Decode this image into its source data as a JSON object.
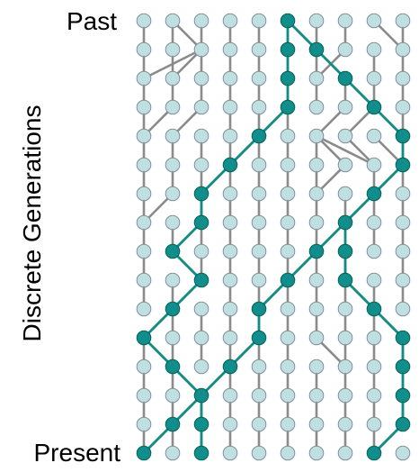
{
  "labels": {
    "top": "Past",
    "bottom": "Present",
    "axis": "Discrete Generations"
  },
  "colors": {
    "background": "#ffffff",
    "node_light": "#bfe0e3",
    "node_dark": "#108e89",
    "edge_gray": "#8a8a8a",
    "edge_teal": "#0f8b86",
    "node_stroke": "#7f8f93",
    "text": "#000000"
  },
  "grid": {
    "columns": 10,
    "rows": 16,
    "row_order": "top_to_bottom_past_to_present"
  },
  "genealogy": {
    "gray_edges": [
      [
        0,
        0,
        0,
        1
      ],
      [
        1,
        0,
        1,
        1
      ],
      [
        1,
        0,
        2,
        1
      ],
      [
        2,
        0,
        2,
        1
      ],
      [
        3,
        0,
        3,
        1
      ],
      [
        4,
        0,
        4,
        1
      ],
      [
        6,
        0,
        6,
        1
      ],
      [
        7,
        0,
        7,
        1
      ],
      [
        8,
        0,
        9,
        1
      ],
      [
        9,
        0,
        9,
        1
      ],
      [
        0,
        1,
        0,
        2
      ],
      [
        1,
        1,
        1,
        2
      ],
      [
        2,
        1,
        0,
        2
      ],
      [
        2,
        1,
        1,
        2
      ],
      [
        2,
        1,
        2,
        2
      ],
      [
        3,
        1,
        3,
        2
      ],
      [
        4,
        1,
        4,
        2
      ],
      [
        6,
        1,
        6,
        2
      ],
      [
        7,
        1,
        6,
        2
      ],
      [
        8,
        1,
        8,
        2
      ],
      [
        9,
        1,
        9,
        2
      ],
      [
        0,
        2,
        0,
        3
      ],
      [
        1,
        2,
        1,
        3
      ],
      [
        2,
        2,
        2,
        3
      ],
      [
        3,
        2,
        3,
        3
      ],
      [
        4,
        2,
        4,
        3
      ],
      [
        6,
        2,
        6,
        3
      ],
      [
        7,
        2,
        7,
        3
      ],
      [
        8,
        2,
        8,
        3
      ],
      [
        9,
        2,
        9,
        3
      ],
      [
        0,
        3,
        0,
        4
      ],
      [
        1,
        3,
        0,
        4
      ],
      [
        2,
        3,
        1,
        4
      ],
      [
        3,
        3,
        3,
        4
      ],
      [
        4,
        3,
        4,
        4
      ],
      [
        5,
        3,
        5,
        4
      ],
      [
        7,
        3,
        6,
        4
      ],
      [
        8,
        3,
        7,
        4
      ],
      [
        9,
        3,
        9,
        4
      ],
      [
        0,
        4,
        0,
        5
      ],
      [
        1,
        4,
        1,
        5
      ],
      [
        2,
        4,
        2,
        5
      ],
      [
        3,
        4,
        3,
        5
      ],
      [
        4,
        4,
        4,
        5
      ],
      [
        5,
        4,
        5,
        5
      ],
      [
        6,
        4,
        6,
        5
      ],
      [
        6,
        4,
        7,
        5
      ],
      [
        6,
        4,
        8,
        5
      ],
      [
        7,
        4,
        8,
        5
      ],
      [
        8,
        4,
        9,
        5
      ],
      [
        0,
        5,
        0,
        6
      ],
      [
        1,
        5,
        1,
        6
      ],
      [
        2,
        5,
        2,
        6
      ],
      [
        3,
        5,
        3,
        6
      ],
      [
        4,
        5,
        4,
        6
      ],
      [
        5,
        5,
        5,
        6
      ],
      [
        6,
        5,
        6,
        6
      ],
      [
        7,
        5,
        6,
        6
      ],
      [
        8,
        5,
        8,
        6
      ],
      [
        9,
        5,
        9,
        6
      ],
      [
        0,
        6,
        0,
        7
      ],
      [
        1,
        6,
        0,
        7
      ],
      [
        2,
        6,
        2,
        7
      ],
      [
        3,
        6,
        3,
        7
      ],
      [
        4,
        6,
        4,
        7
      ],
      [
        5,
        6,
        5,
        7
      ],
      [
        6,
        6,
        6,
        7
      ],
      [
        7,
        6,
        7,
        7
      ],
      [
        8,
        6,
        8,
        7
      ],
      [
        9,
        6,
        9,
        7
      ],
      [
        0,
        7,
        0,
        8
      ],
      [
        1,
        7,
        1,
        8
      ],
      [
        2,
        7,
        2,
        8
      ],
      [
        3,
        7,
        3,
        8
      ],
      [
        4,
        7,
        4,
        8
      ],
      [
        5,
        7,
        5,
        8
      ],
      [
        6,
        7,
        6,
        8
      ],
      [
        8,
        7,
        8,
        8
      ],
      [
        9,
        7,
        9,
        8
      ],
      [
        0,
        8,
        0,
        9
      ],
      [
        2,
        8,
        2,
        9
      ],
      [
        3,
        8,
        3,
        9
      ],
      [
        4,
        8,
        4,
        9
      ],
      [
        5,
        8,
        5,
        9
      ],
      [
        6,
        8,
        6,
        9
      ],
      [
        7,
        8,
        7,
        9
      ],
      [
        9,
        8,
        9,
        9
      ],
      [
        0,
        9,
        0,
        10
      ],
      [
        1,
        9,
        1,
        10
      ],
      [
        3,
        9,
        3,
        10
      ],
      [
        4,
        9,
        4,
        10
      ],
      [
        5,
        9,
        5,
        10
      ],
      [
        6,
        9,
        6,
        10
      ],
      [
        7,
        9,
        7,
        10
      ],
      [
        8,
        9,
        8,
        10
      ],
      [
        9,
        9,
        9,
        10
      ],
      [
        1,
        10,
        1,
        11
      ],
      [
        2,
        10,
        2,
        11
      ],
      [
        3,
        10,
        3,
        11
      ],
      [
        5,
        10,
        5,
        11
      ],
      [
        6,
        10,
        6,
        11
      ],
      [
        7,
        10,
        7,
        11
      ],
      [
        8,
        10,
        8,
        11
      ],
      [
        0,
        11,
        0,
        12
      ],
      [
        1,
        11,
        1,
        12
      ],
      [
        2,
        11,
        2,
        12
      ],
      [
        3,
        11,
        3,
        12
      ],
      [
        4,
        11,
        4,
        12
      ],
      [
        5,
        11,
        5,
        12
      ],
      [
        6,
        11,
        7,
        12
      ],
      [
        7,
        11,
        7,
        12
      ],
      [
        8,
        11,
        8,
        12
      ],
      [
        9,
        11,
        9,
        12
      ],
      [
        0,
        12,
        0,
        13
      ],
      [
        1,
        12,
        1,
        13
      ],
      [
        3,
        12,
        3,
        13
      ],
      [
        4,
        12,
        4,
        13
      ],
      [
        5,
        12,
        5,
        13
      ],
      [
        6,
        12,
        6,
        13
      ],
      [
        7,
        12,
        7,
        13
      ],
      [
        8,
        12,
        8,
        13
      ],
      [
        0,
        13,
        0,
        14
      ],
      [
        1,
        13,
        1,
        14
      ],
      [
        2,
        13,
        2,
        14
      ],
      [
        3,
        13,
        3,
        14
      ],
      [
        4,
        13,
        4,
        14
      ],
      [
        5,
        13,
        5,
        14
      ],
      [
        6,
        13,
        6,
        14
      ],
      [
        7,
        13,
        7,
        14
      ],
      [
        8,
        13,
        8,
        14
      ],
      [
        9,
        13,
        9,
        14
      ],
      [
        0,
        14,
        0,
        15
      ],
      [
        1,
        14,
        1,
        15
      ],
      [
        2,
        14,
        2,
        15
      ],
      [
        3,
        14,
        3,
        15
      ],
      [
        4,
        14,
        4,
        15
      ],
      [
        5,
        14,
        5,
        15
      ],
      [
        6,
        14,
        6,
        15
      ],
      [
        7,
        14,
        7,
        15
      ],
      [
        8,
        14,
        8,
        15
      ]
    ],
    "teal_edges": [
      [
        5,
        0,
        5,
        1
      ],
      [
        5,
        0,
        6,
        1
      ],
      [
        5,
        1,
        5,
        2
      ],
      [
        6,
        1,
        7,
        2
      ],
      [
        5,
        2,
        5,
        3
      ],
      [
        7,
        2,
        8,
        3
      ],
      [
        5,
        3,
        4,
        4
      ],
      [
        8,
        3,
        9,
        4
      ],
      [
        4,
        4,
        3,
        5
      ],
      [
        9,
        4,
        9,
        5
      ],
      [
        3,
        5,
        2,
        6
      ],
      [
        9,
        5,
        8,
        6
      ],
      [
        2,
        6,
        2,
        7
      ],
      [
        8,
        6,
        7,
        7
      ],
      [
        2,
        7,
        1,
        8
      ],
      [
        7,
        7,
        6,
        8
      ],
      [
        1,
        8,
        2,
        9
      ],
      [
        6,
        8,
        5,
        9
      ],
      [
        2,
        9,
        1,
        10
      ],
      [
        5,
        9,
        4,
        10
      ],
      [
        7,
        7,
        7,
        8
      ],
      [
        7,
        8,
        7,
        9
      ],
      [
        7,
        9,
        8,
        10
      ],
      [
        8,
        10,
        9,
        11
      ],
      [
        1,
        10,
        0,
        11
      ],
      [
        4,
        10,
        4,
        11
      ],
      [
        4,
        11,
        3,
        12
      ],
      [
        3,
        12,
        2,
        13
      ],
      [
        2,
        13,
        1,
        14
      ],
      [
        1,
        14,
        0,
        15
      ],
      [
        0,
        11,
        1,
        12
      ],
      [
        1,
        12,
        2,
        13
      ],
      [
        2,
        13,
        2,
        14
      ],
      [
        2,
        14,
        2,
        15
      ],
      [
        9,
        11,
        9,
        12
      ],
      [
        9,
        12,
        9,
        13
      ],
      [
        9,
        13,
        9,
        14
      ],
      [
        9,
        14,
        8,
        15
      ]
    ],
    "dark_nodes": [
      [
        5,
        0
      ],
      [
        5,
        1
      ],
      [
        6,
        1
      ],
      [
        5,
        2
      ],
      [
        7,
        2
      ],
      [
        5,
        3
      ],
      [
        8,
        3
      ],
      [
        4,
        4
      ],
      [
        9,
        4
      ],
      [
        3,
        5
      ],
      [
        9,
        5
      ],
      [
        2,
        6
      ],
      [
        8,
        6
      ],
      [
        2,
        7
      ],
      [
        7,
        7
      ],
      [
        1,
        8
      ],
      [
        6,
        8
      ],
      [
        7,
        8
      ],
      [
        2,
        9
      ],
      [
        5,
        9
      ],
      [
        7,
        9
      ],
      [
        1,
        10
      ],
      [
        4,
        10
      ],
      [
        8,
        10
      ],
      [
        0,
        11
      ],
      [
        4,
        11
      ],
      [
        9,
        11
      ],
      [
        1,
        12
      ],
      [
        3,
        12
      ],
      [
        9,
        12
      ],
      [
        2,
        13
      ],
      [
        9,
        13
      ],
      [
        1,
        14
      ],
      [
        2,
        14
      ],
      [
        9,
        14
      ],
      [
        0,
        15
      ],
      [
        2,
        15
      ],
      [
        8,
        15
      ]
    ]
  }
}
